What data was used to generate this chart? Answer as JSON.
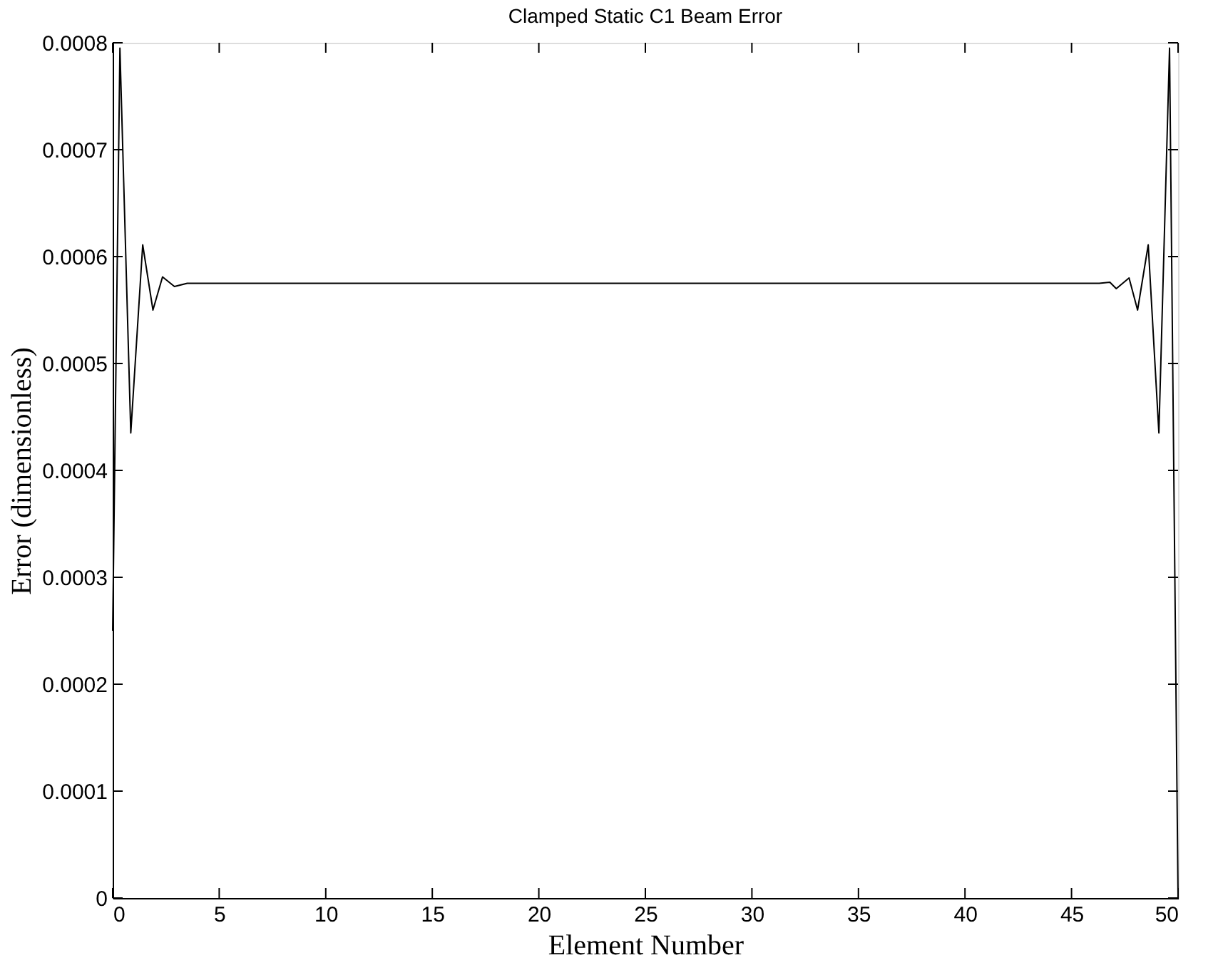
{
  "chart_data": {
    "type": "line",
    "title": "Clamped Static C1 Beam Error",
    "xlabel": "Element Number",
    "ylabel": "Error (dimensionless)",
    "series": [
      {
        "color": "#000000",
        "x": [
          0,
          0.34,
          0.85,
          1.41,
          1.89,
          2.34,
          2.9,
          3.5,
          5,
          10,
          20,
          30,
          40,
          45,
          46.3,
          46.8,
          47.1,
          47.7,
          48.1,
          48.6,
          49.1,
          49.6,
          50
        ],
        "values": [
          0.00025,
          0.000795,
          0.000435,
          0.000611,
          0.00055,
          0.000581,
          0.000572,
          0.000575,
          0.000575,
          0.000575,
          0.000575,
          0.000575,
          0.000575,
          0.000575,
          0.000575,
          0.000576,
          0.00057,
          0.00058,
          0.00055,
          0.000611,
          0.000435,
          0.000795,
          0
        ]
      }
    ],
    "xlim": [
      0,
      50
    ],
    "xticks": [
      0,
      5,
      10,
      15,
      20,
      25,
      30,
      35,
      40,
      45,
      50
    ],
    "ylim": [
      0,
      0.0008
    ],
    "yticks": [
      0,
      0.0001,
      0.0002,
      0.0003,
      0.0004,
      0.0005,
      0.0006,
      0.0007,
      0.0008
    ],
    "grid": false,
    "marker": "none",
    "line_style": "solid"
  }
}
